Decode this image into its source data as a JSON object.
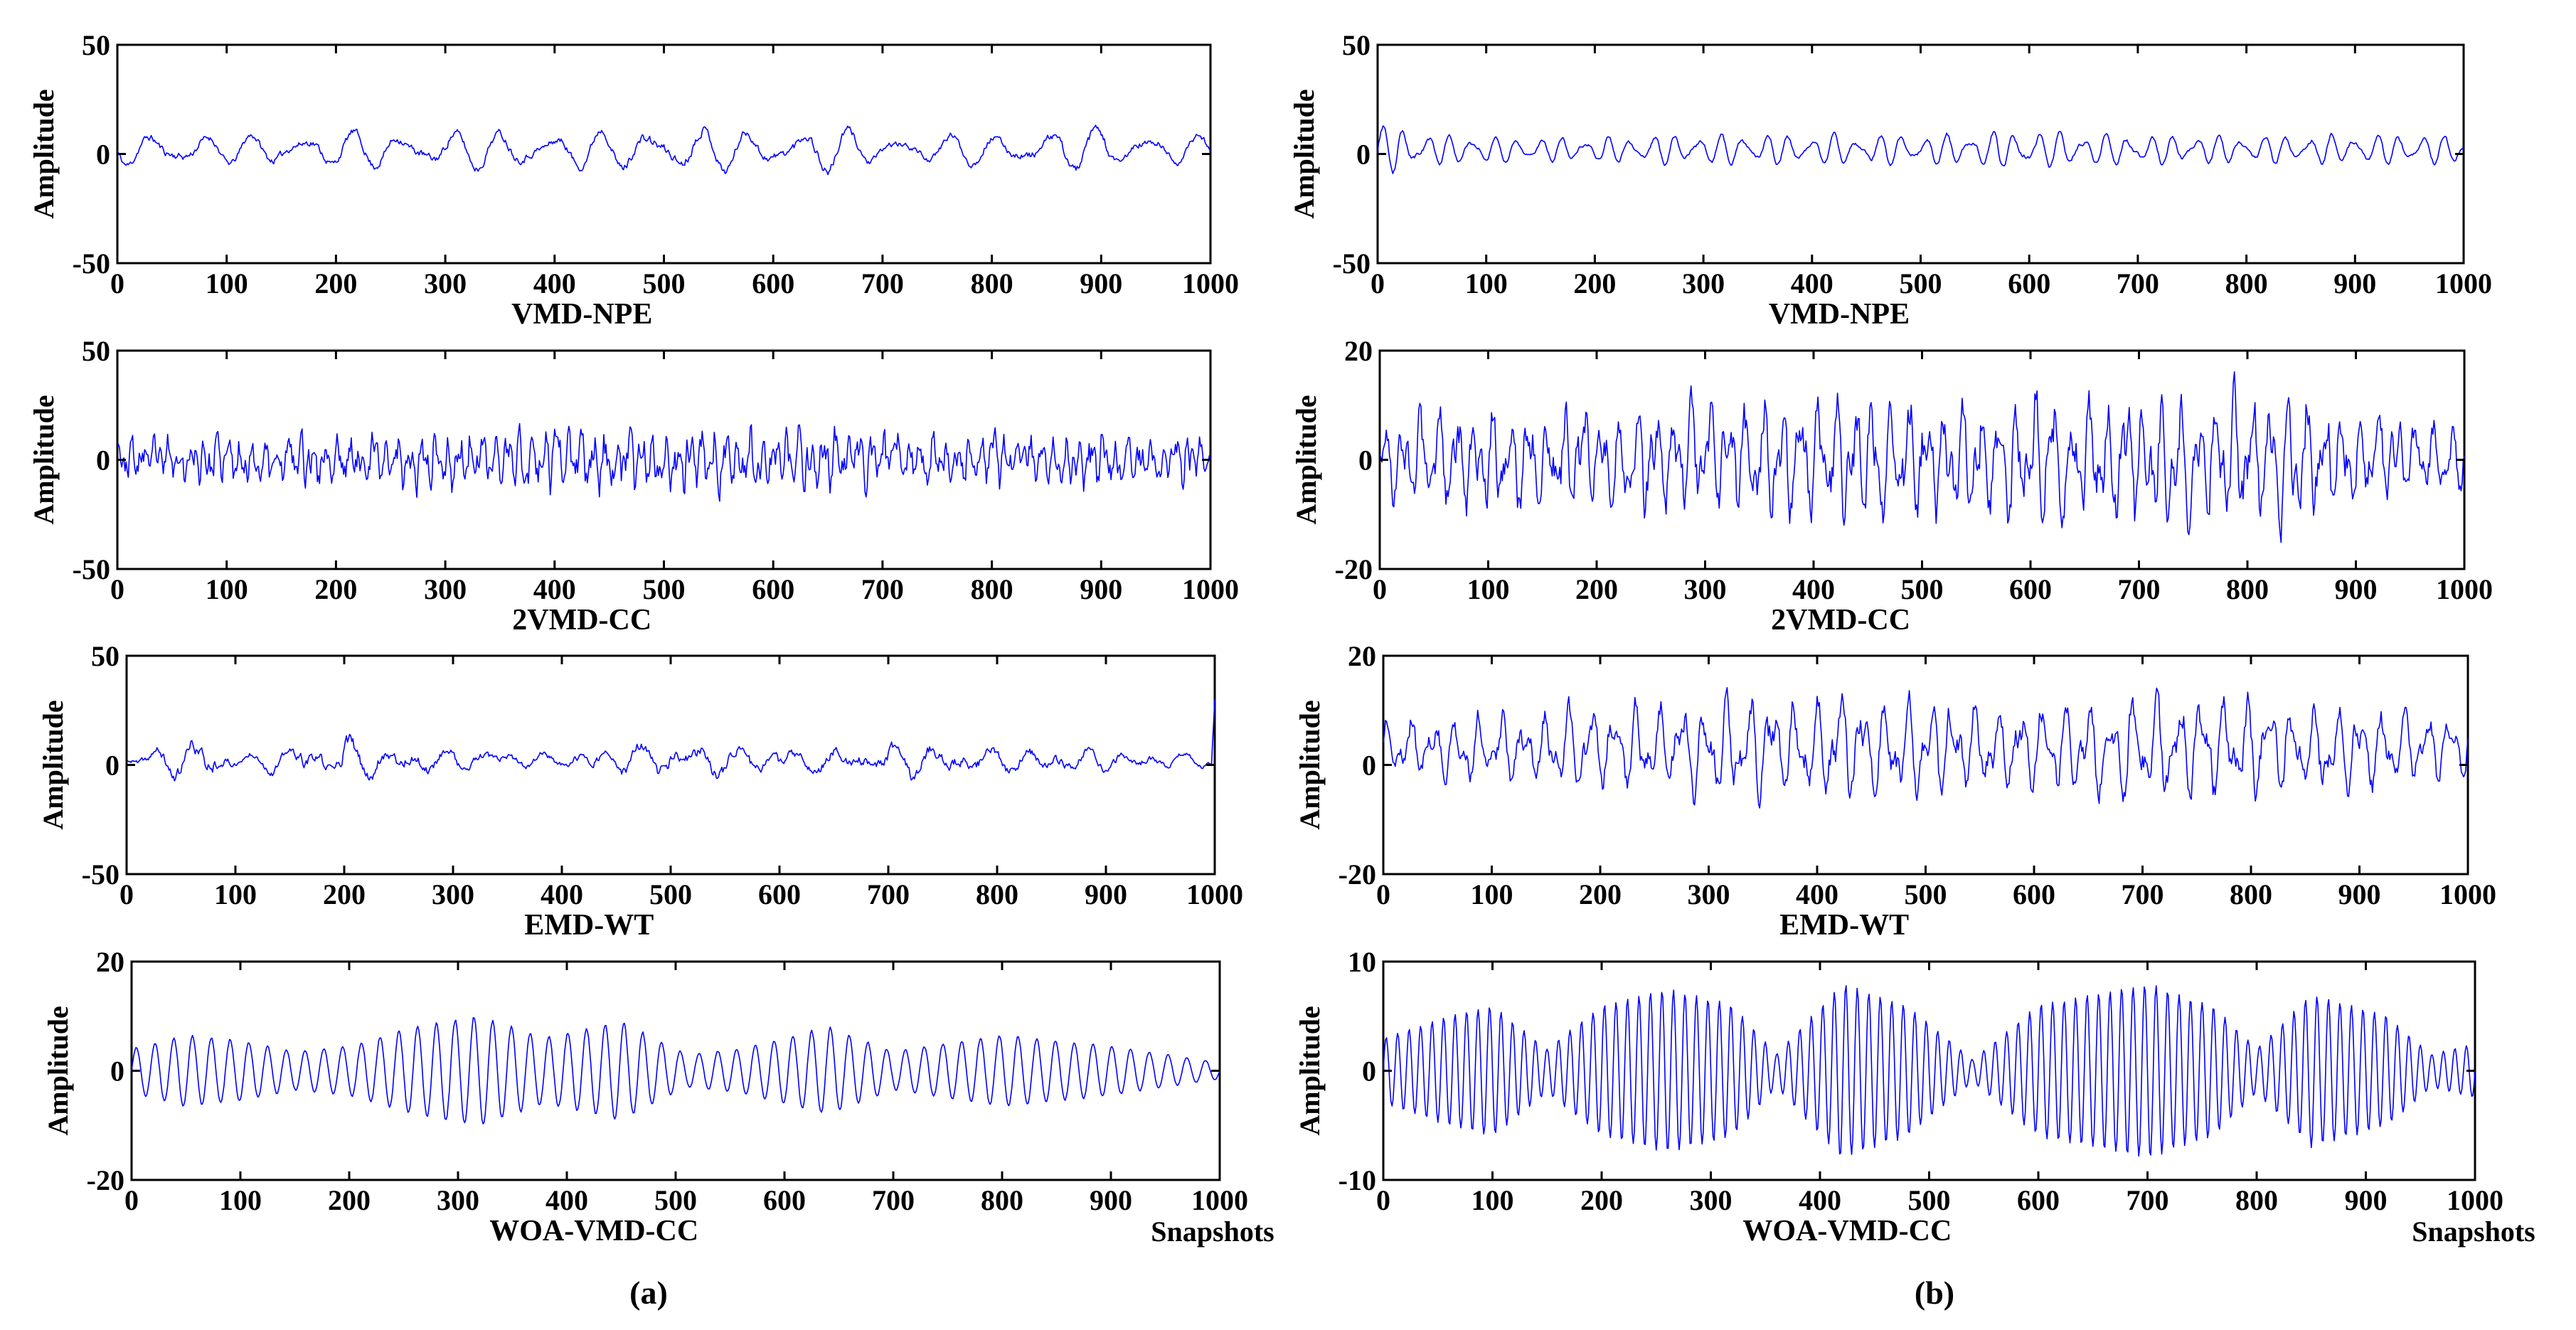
{
  "colors": {
    "signal": "#0000ff",
    "axis": "#000000"
  },
  "xlabel_extra": "Snapshots",
  "ylabel": "Amplitude",
  "chart_data": [
    {
      "type": "line",
      "panel": "(a)",
      "title": "VMD-NPE",
      "ylabel": "Amplitude",
      "xlim": [
        0,
        1000
      ],
      "ylim": [
        -50,
        50
      ],
      "xticks": [
        "0",
        "100",
        "200",
        "300",
        "400",
        "500",
        "600",
        "700",
        "800",
        "900",
        "1000"
      ],
      "yticks": [
        "50",
        "0",
        "-50"
      ],
      "signal": {
        "style": "narrowband",
        "n": 1000,
        "amp": 6,
        "env": [
          [
            0,
            8
          ],
          [
            50,
            10
          ],
          [
            100,
            7
          ],
          [
            150,
            9
          ],
          [
            200,
            9
          ],
          [
            300,
            10
          ],
          [
            400,
            9
          ],
          [
            500,
            12
          ],
          [
            600,
            10
          ],
          [
            650,
            12
          ],
          [
            700,
            7
          ],
          [
            800,
            8
          ],
          [
            900,
            11
          ],
          [
            1000,
            7
          ]
        ],
        "cycles": [
          [
            0,
            22
          ],
          [
            1000,
            22
          ]
        ],
        "noise": 0.35,
        "seed": 11
      }
    },
    {
      "type": "line",
      "panel": "(a)",
      "title": "2VMD-CC",
      "ylabel": "Amplitude",
      "xlim": [
        0,
        1000
      ],
      "ylim": [
        -50,
        50
      ],
      "xticks": [
        "0",
        "100",
        "200",
        "300",
        "400",
        "500",
        "600",
        "700",
        "800",
        "900",
        "1000"
      ],
      "yticks": [
        "50",
        "0",
        "-50"
      ],
      "signal": {
        "style": "noisy",
        "n": 1000,
        "amp": 9,
        "env": [
          [
            0,
            10
          ],
          [
            250,
            12
          ],
          [
            500,
            13
          ],
          [
            650,
            12
          ],
          [
            800,
            11
          ],
          [
            1000,
            11
          ]
        ],
        "cycles": [
          [
            0,
            90
          ],
          [
            1000,
            90
          ]
        ],
        "noise": 0.9,
        "seed": 23
      }
    },
    {
      "type": "line",
      "panel": "(a)",
      "title": "EMD-WT",
      "ylabel": "Amplitude",
      "xlim": [
        0,
        1000
      ],
      "ylim": [
        -50,
        50
      ],
      "xticks": [
        "0",
        "100",
        "200",
        "300",
        "400",
        "500",
        "600",
        "700",
        "800",
        "900",
        "1000"
      ],
      "yticks": [
        "50",
        "0",
        "-50"
      ],
      "signal": {
        "style": "bursty",
        "n": 1000,
        "amp": 4,
        "env": [
          [
            0,
            4
          ],
          [
            70,
            20
          ],
          [
            100,
            6
          ],
          [
            200,
            18
          ],
          [
            260,
            12
          ],
          [
            400,
            6
          ],
          [
            490,
            16
          ],
          [
            580,
            12
          ],
          [
            720,
            14
          ],
          [
            850,
            10
          ],
          [
            1000,
            6
          ]
        ],
        "cycles": [
          [
            0,
            28
          ],
          [
            1000,
            28
          ]
        ],
        "noise": 0.35,
        "seed": 37,
        "spike_end": 30
      }
    },
    {
      "type": "line",
      "panel": "(a)",
      "title": "WOA-VMD-CC",
      "ylabel": "Amplitude",
      "xlim": [
        0,
        1000
      ],
      "ylim": [
        -20,
        20
      ],
      "xticks": [
        "0",
        "100",
        "200",
        "300",
        "400",
        "500",
        "600",
        "700",
        "800",
        "900",
        "1000"
      ],
      "yticks": [
        "20",
        "0",
        "-20"
      ],
      "signal": {
        "style": "beating",
        "n": 1000,
        "amp": 6,
        "env": [
          [
            0,
            4
          ],
          [
            50,
            6.5
          ],
          [
            100,
            5.5
          ],
          [
            150,
            3.5
          ],
          [
            200,
            4.5
          ],
          [
            260,
            8
          ],
          [
            320,
            10
          ],
          [
            380,
            6
          ],
          [
            450,
            9
          ],
          [
            510,
            3
          ],
          [
            560,
            4
          ],
          [
            640,
            8
          ],
          [
            700,
            3.5
          ],
          [
            800,
            6.5
          ],
          [
            900,
            4.5
          ],
          [
            1000,
            1.5
          ]
        ],
        "cycles": [
          [
            0,
            58
          ],
          [
            1000,
            58
          ]
        ],
        "noise": 0.05,
        "seed": 41
      }
    },
    {
      "type": "line",
      "panel": "(b)",
      "title": "VMD-NPE",
      "ylabel": "Amplitude",
      "xlim": [
        0,
        1000
      ],
      "ylim": [
        -50,
        50
      ],
      "xticks": [
        "0",
        "100",
        "200",
        "300",
        "400",
        "500",
        "600",
        "700",
        "800",
        "900",
        "1000"
      ],
      "yticks": [
        "50",
        "0",
        "-50"
      ],
      "signal": {
        "style": "narrowband",
        "n": 1000,
        "amp": 5,
        "env": [
          [
            0,
            14
          ],
          [
            50,
            8
          ],
          [
            150,
            6
          ],
          [
            300,
            8
          ],
          [
            500,
            8
          ],
          [
            600,
            10
          ],
          [
            700,
            8
          ],
          [
            800,
            7
          ],
          [
            900,
            8
          ],
          [
            1000,
            7
          ]
        ],
        "cycles": [
          [
            0,
            48
          ],
          [
            1000,
            48
          ]
        ],
        "noise": 0.2,
        "seed": 53
      }
    },
    {
      "type": "line",
      "panel": "(b)",
      "title": "2VMD-CC",
      "ylabel": "Amplitude",
      "xlim": [
        0,
        1000
      ],
      "ylim": [
        -20,
        20
      ],
      "xticks": [
        "0",
        "100",
        "200",
        "300",
        "400",
        "500",
        "600",
        "700",
        "800",
        "900",
        "1000"
      ],
      "yticks": [
        "20",
        "0",
        "-20"
      ],
      "signal": {
        "style": "noisy",
        "n": 1000,
        "amp": 7,
        "env": [
          [
            0,
            8
          ],
          [
            200,
            10
          ],
          [
            450,
            11
          ],
          [
            650,
            12
          ],
          [
            850,
            12
          ],
          [
            1000,
            6
          ]
        ],
        "cycles": [
          [
            0,
            60
          ],
          [
            1000,
            60
          ]
        ],
        "noise": 0.55,
        "seed": 67
      }
    },
    {
      "type": "line",
      "panel": "(b)",
      "title": "EMD-WT",
      "ylabel": "Amplitude",
      "xlim": [
        0,
        1000
      ],
      "ylim": [
        -20,
        20
      ],
      "xticks": [
        "0",
        "100",
        "200",
        "300",
        "400",
        "500",
        "600",
        "700",
        "800",
        "900",
        "1000"
      ],
      "yticks": [
        "20",
        "0",
        "-20"
      ],
      "signal": {
        "style": "noisy",
        "n": 1000,
        "amp": 5,
        "env": [
          [
            0,
            6
          ],
          [
            150,
            8
          ],
          [
            300,
            10
          ],
          [
            450,
            11
          ],
          [
            600,
            9
          ],
          [
            800,
            11
          ],
          [
            1000,
            6
          ]
        ],
        "cycles": [
          [
            0,
            48
          ],
          [
            1000,
            48
          ]
        ],
        "noise": 0.35,
        "seed": 79,
        "offset": 3
      }
    },
    {
      "type": "line",
      "panel": "(b)",
      "title": "WOA-VMD-CC",
      "ylabel": "Amplitude",
      "xlim": [
        0,
        1000
      ],
      "ylim": [
        -10,
        10
      ],
      "xticks": [
        "0",
        "100",
        "200",
        "300",
        "400",
        "500",
        "600",
        "700",
        "800",
        "900",
        "1000"
      ],
      "yticks": [
        "10",
        "0",
        "-10"
      ],
      "signal": {
        "style": "beating",
        "n": 1000,
        "amp": 6,
        "env": [
          [
            0,
            3
          ],
          [
            60,
            5
          ],
          [
            100,
            6
          ],
          [
            150,
            2
          ],
          [
            200,
            6
          ],
          [
            260,
            7.5
          ],
          [
            320,
            6
          ],
          [
            360,
            1.5
          ],
          [
            420,
            8
          ],
          [
            480,
            6
          ],
          [
            540,
            1
          ],
          [
            600,
            6
          ],
          [
            700,
            8
          ],
          [
            760,
            6
          ],
          [
            800,
            2
          ],
          [
            850,
            7
          ],
          [
            920,
            5
          ],
          [
            960,
            1.5
          ],
          [
            1000,
            2.5
          ]
        ],
        "cycles": [
          [
            0,
            95
          ],
          [
            1000,
            95
          ]
        ],
        "noise": 0.03,
        "seed": 97
      }
    }
  ],
  "panels": [
    {
      "label": "(a)"
    },
    {
      "label": "(b)"
    }
  ]
}
